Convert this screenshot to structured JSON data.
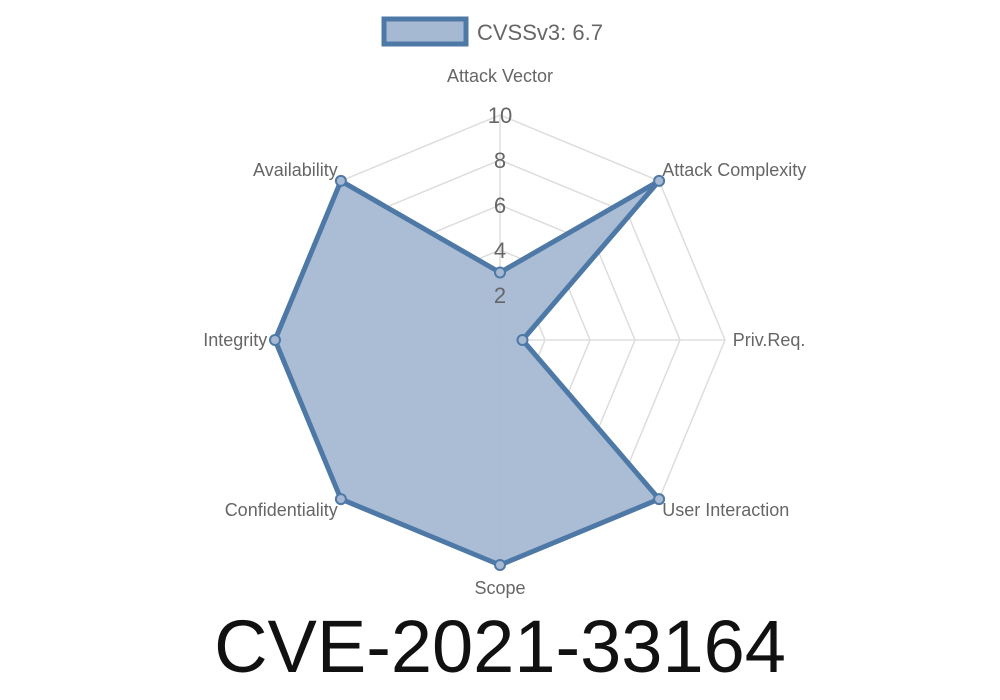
{
  "chart_data": {
    "type": "radar",
    "title": "CVE-2021-33164",
    "axes": [
      "Attack Vector",
      "Attack Complexity",
      "Priv.Req.",
      "User Interaction",
      "Scope",
      "Confidentiality",
      "Integrity",
      "Availability"
    ],
    "series": [
      {
        "name": "CVSSv3: 6.7",
        "values": [
          3,
          10,
          1,
          10,
          10,
          10,
          10,
          10
        ]
      }
    ],
    "r_range": [
      0,
      10
    ],
    "r_ticks": [
      "2",
      "4",
      "6",
      "8",
      "10"
    ],
    "grid": true,
    "legend_position": "top",
    "colors": {
      "line": "#4e79a7",
      "fill": "#a5b9d3",
      "grid": "#dddddd"
    }
  }
}
